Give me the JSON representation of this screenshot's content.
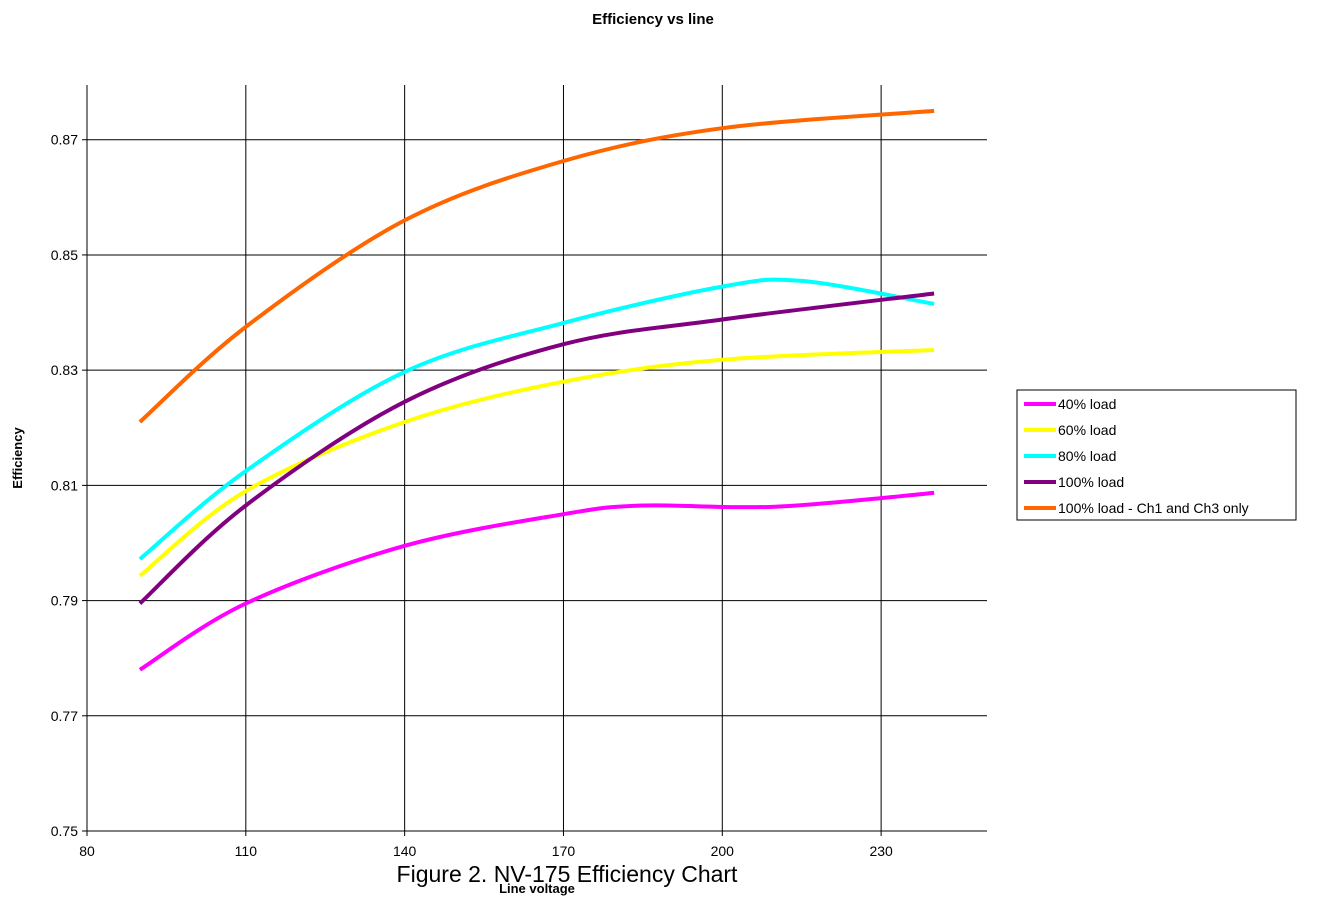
{
  "caption": "Figure 2. NV-175 Efficiency Chart",
  "chart_data": {
    "type": "line",
    "title": "Efficiency vs line",
    "xlabel": "Line voltage",
    "ylabel": "Efficiency",
    "xlim": [
      80,
      250
    ],
    "ylim": [
      0.75,
      0.8795
    ],
    "xticks": [
      80,
      110,
      140,
      170,
      200,
      230
    ],
    "xtick_labels": [
      "80",
      "110",
      "140",
      "170",
      "200",
      "230"
    ],
    "yticks": [
      0.75,
      0.77,
      0.79,
      0.81,
      0.83,
      0.85,
      0.87
    ],
    "ytick_labels": [
      "0.75",
      "0.77",
      "0.79",
      "0.81",
      "0.83",
      "0.85",
      "0.87"
    ],
    "grid": true,
    "legend_position": "right",
    "series": [
      {
        "name": "40% load",
        "color": "#ff00ff",
        "x": [
          90,
          110,
          140,
          170,
          185,
          210,
          240
        ],
        "y": [
          0.778,
          0.7895,
          0.7995,
          0.805,
          0.8065,
          0.8063,
          0.8087
        ]
      },
      {
        "name": "60% load",
        "color": "#ffff00",
        "x": [
          90,
          110,
          140,
          170,
          200,
          240
        ],
        "y": [
          0.7943,
          0.809,
          0.821,
          0.828,
          0.8318,
          0.8335
        ]
      },
      {
        "name": "80% load",
        "color": "#00ffff",
        "x": [
          90,
          110,
          140,
          170,
          200,
          215,
          240
        ],
        "y": [
          0.7972,
          0.8125,
          0.8297,
          0.8382,
          0.8445,
          0.8455,
          0.8415
        ]
      },
      {
        "name": "100% load",
        "color": "#800080",
        "x": [
          90,
          110,
          140,
          170,
          200,
          240
        ],
        "y": [
          0.7895,
          0.8065,
          0.8245,
          0.8345,
          0.8388,
          0.8433
        ]
      },
      {
        "name": "100% load - Ch1 and Ch3 only",
        "color": "#ff6600",
        "x": [
          90,
          110,
          140,
          170,
          200,
          240
        ],
        "y": [
          0.821,
          0.8375,
          0.856,
          0.8663,
          0.872,
          0.875
        ]
      }
    ]
  }
}
